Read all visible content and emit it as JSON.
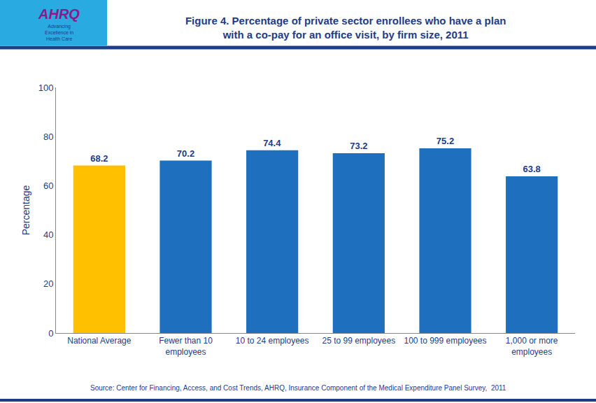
{
  "chart_data": {
    "type": "bar",
    "title": "Figure 4. Percentage of private sector enrollees who have a plan\nwith a co-pay for an office visit, by firm size, 2011",
    "ylabel": "Percentage",
    "categories": [
      "National Average",
      "Fewer than 10\nemployees",
      "10 to 24 employees",
      "25 to 99 employees",
      "100 to 999 employees",
      "1,000 or more\nemployees"
    ],
    "values": [
      68.2,
      70.2,
      74.4,
      73.2,
      75.2,
      63.8
    ],
    "colors": [
      "#FFC000",
      "#1F6FBF",
      "#1F6FBF",
      "#1F6FBF",
      "#1F6FBF",
      "#1F6FBF"
    ],
    "ylim": [
      0,
      100
    ],
    "yticks": [
      0,
      20,
      40,
      60,
      80,
      100
    ],
    "grid": false,
    "data_labels": true,
    "annotations": [
      "Source: Center for Financing, Access, and Cost Trends, AHRQ, Insurance Component of the Medical Expenditure Panel Survey,  2011",
      "AHRQ",
      "Advancing\nExcellence in\nHealth Care"
    ]
  }
}
